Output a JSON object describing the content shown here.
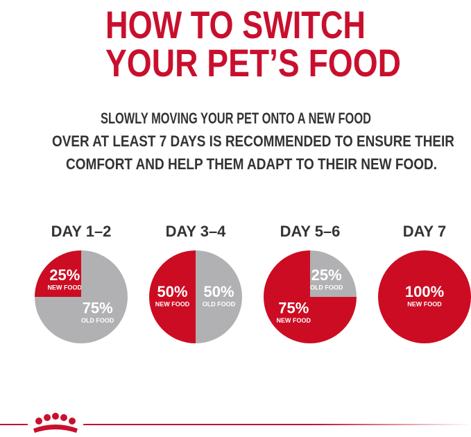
{
  "header": {
    "title": [
      "HOW TO SWITCH",
      "YOUR PET’S FOOD"
    ],
    "intro": [
      "SLOWLY MOVING YOUR PET ONTO A NEW FOOD",
      "OVER AT LEAST 7 DAYS IS RECOMMENDED TO ENSURE THEIR",
      "COMFORT AND HELP THEM ADAPT TO THEIR NEW FOOD."
    ]
  },
  "chart_data": [
    {
      "type": "pie",
      "title": "DAY 1–2",
      "categories": [
        "NEW FOOD",
        "OLD FOOD"
      ],
      "values": [
        25,
        75
      ],
      "value_labels": [
        "25%",
        "75%"
      ],
      "colors": [
        "#cc0c22",
        "#b1b1b3"
      ]
    },
    {
      "type": "pie",
      "title": "DAY 3–4",
      "categories": [
        "NEW FOOD",
        "OLD FOOD"
      ],
      "values": [
        50,
        50
      ],
      "value_labels": [
        "50%",
        "50%"
      ],
      "colors": [
        "#cc0c22",
        "#b1b1b3"
      ]
    },
    {
      "type": "pie",
      "title": "DAY 5–6",
      "categories": [
        "NEW FOOD",
        "OLD FOOD"
      ],
      "values": [
        75,
        25
      ],
      "value_labels": [
        "75%",
        "25%"
      ],
      "colors": [
        "#cc0c22",
        "#b1b1b3"
      ]
    },
    {
      "type": "pie",
      "title": "DAY 7",
      "categories": [
        "NEW FOOD"
      ],
      "values": [
        100
      ],
      "value_labels": [
        "100%"
      ],
      "colors": [
        "#cc0c22"
      ]
    }
  ]
}
